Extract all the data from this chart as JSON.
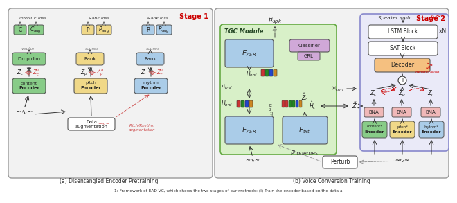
{
  "title": "Figure 1: Framework of EAD-VC",
  "caption_bottom": "1: Framework of EAD-VC, which shows the two stages of our methods: (I) Train the encoder based on the data a",
  "subfig_a_label": "(a) Disentangled Encoder Pretraining",
  "subfig_b_label": "(b) Voice Conversion Training",
  "stage1_label": "Stage 1",
  "stage2_label": "Stage 2",
  "bg_color": "#ffffff",
  "panel_a_bg": "#f2f2f2",
  "panel_b_bg": "#f2f2f2",
  "tgc_bg": "#d8f0c8",
  "stage2_bg": "#eaeaf8",
  "green_box": "#88cc88",
  "yellow_box": "#f0d888",
  "blue_box": "#aacce8",
  "purple_box": "#d0a8d8",
  "orange_box": "#f5c080",
  "pink_box": "#f0b8b8",
  "red_color": "#cc0000",
  "gray_color": "#888888",
  "black_color": "#222222"
}
